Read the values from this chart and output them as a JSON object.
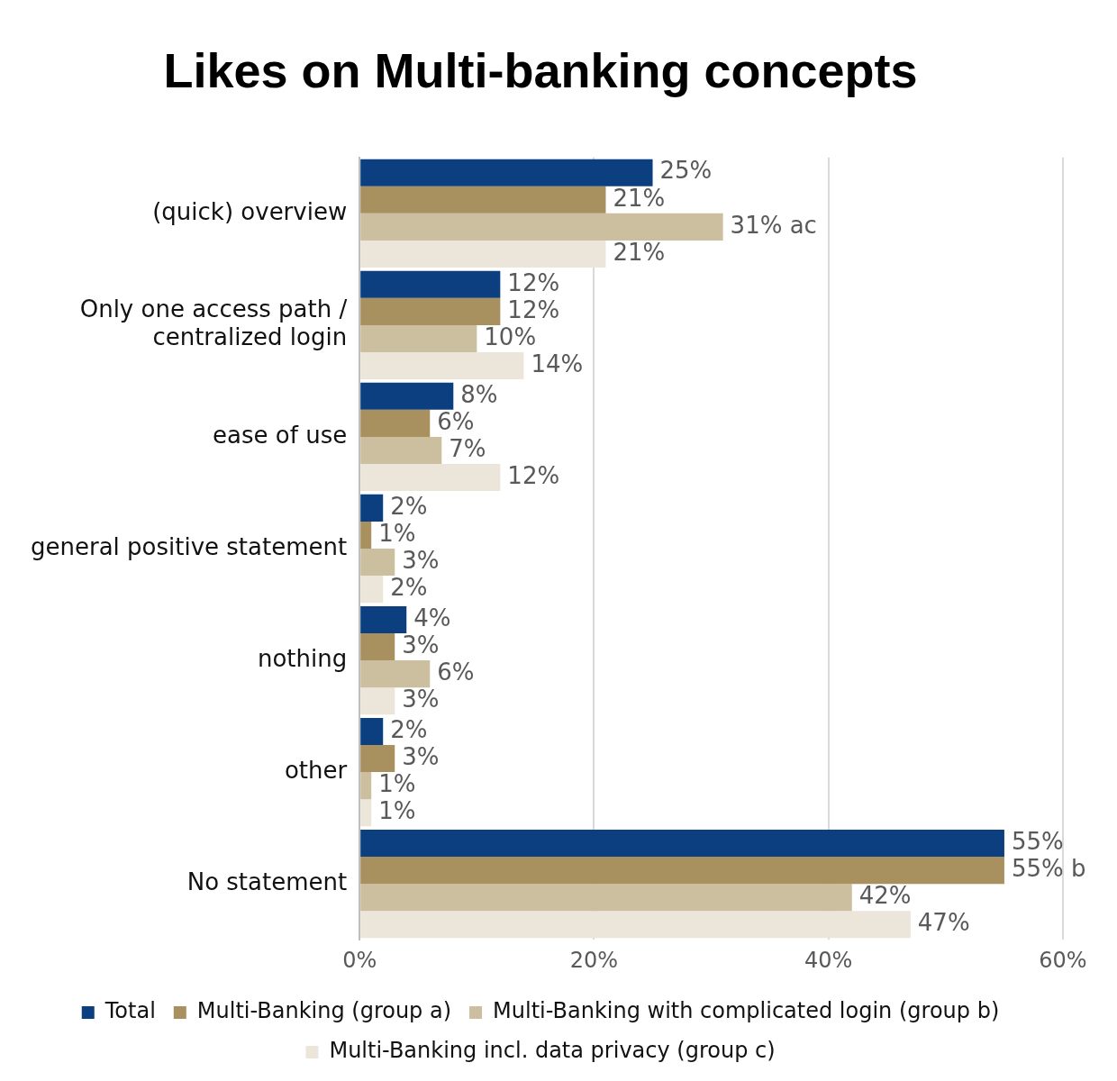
{
  "chart_data": {
    "type": "bar",
    "orientation": "horizontal",
    "title": "Likes on Multi-banking concepts",
    "categories": [
      "(quick) overview",
      "Only one access path / centralized login",
      "ease of use",
      "general positive statement",
      "nothing",
      "other",
      "No statement"
    ],
    "series": [
      {
        "name": "Total",
        "color": "#0b3f7f",
        "values": [
          25,
          12,
          8,
          2,
          4,
          2,
          55
        ],
        "value_labels": [
          "25%",
          "12%",
          "8%",
          "2%",
          "4%",
          "2%",
          "55%"
        ]
      },
      {
        "name": "Multi-Banking (group a)",
        "color": "#a8915f",
        "values": [
          21,
          12,
          6,
          1,
          3,
          3,
          55
        ],
        "value_labels": [
          "21%",
          "12%",
          "6%",
          "1%",
          "3%",
          "3%",
          "55% b"
        ]
      },
      {
        "name": "Multi-Banking with complicated login (group b)",
        "color": "#cbbf9f",
        "values": [
          31,
          10,
          7,
          3,
          6,
          1,
          42
        ],
        "value_labels": [
          "31% ac",
          "10%",
          "7%",
          "3%",
          "6%",
          "1%",
          "42%"
        ]
      },
      {
        "name": "Multi-Banking incl. data privacy (group c)",
        "color": "#ebe5da",
        "values": [
          21,
          14,
          12,
          2,
          3,
          1,
          47
        ],
        "value_labels": [
          "21%",
          "14%",
          "12%",
          "2%",
          "3%",
          "1%",
          "47%"
        ]
      }
    ],
    "xlim": [
      0,
      60
    ],
    "xticks": [
      {
        "value": 0,
        "label": "0%"
      },
      {
        "value": 20,
        "label": "20%"
      },
      {
        "value": 40,
        "label": "40%"
      },
      {
        "value": 60,
        "label": "60%"
      }
    ],
    "grid": "x",
    "legend": "bottom"
  }
}
